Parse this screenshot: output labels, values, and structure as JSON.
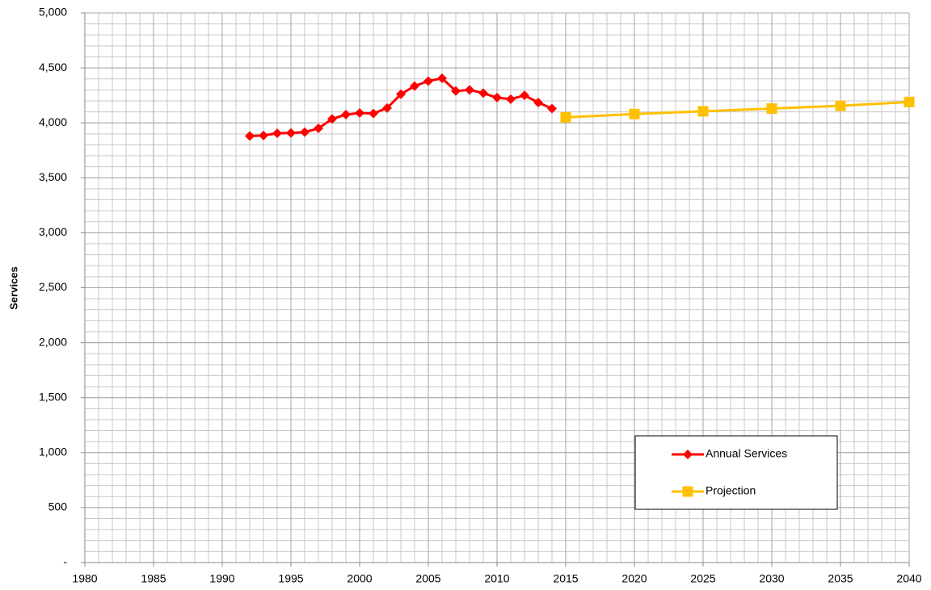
{
  "chart_data": {
    "type": "line",
    "y_label": "Services",
    "xlim": [
      1980,
      2040
    ],
    "xticks": [
      1980,
      1985,
      1990,
      1995,
      2000,
      2005,
      2010,
      2015,
      2020,
      2025,
      2030,
      2035,
      2040
    ],
    "ylim": [
      0,
      5000
    ],
    "yticks": [
      {
        "value": 0,
        "label": "-"
      },
      500,
      {
        "value": 1000,
        "label": "1,000"
      },
      {
        "value": 1500,
        "label": "1,500"
      },
      {
        "value": 2000,
        "label": "2,000"
      },
      {
        "value": 2500,
        "label": "2,500"
      },
      {
        "value": 3000,
        "label": "3,000"
      },
      {
        "value": 3500,
        "label": "3,500"
      },
      {
        "value": 4000,
        "label": "4,000"
      },
      {
        "value": 4500,
        "label": "4,500"
      },
      {
        "value": 5000,
        "label": "5,000"
      }
    ],
    "grid": true,
    "legend": "lower right",
    "series": [
      {
        "name": "Annual Services",
        "color": "#ff0000",
        "marker": "diamond",
        "x": [
          1992,
          1993,
          1994,
          1995,
          1996,
          1997,
          1998,
          1999,
          2000,
          2001,
          2002,
          2003,
          2004,
          2005,
          2006,
          2007,
          2008,
          2009,
          2010,
          2011,
          2012,
          2013,
          2014
        ],
        "values": [
          3880,
          3885,
          3905,
          3908,
          3915,
          3950,
          4035,
          4075,
          4090,
          4085,
          4135,
          4260,
          4335,
          4380,
          4405,
          4290,
          4300,
          4270,
          4230,
          4215,
          4250,
          4185,
          4130
        ]
      },
      {
        "name": "Projection",
        "color": "#ffc000",
        "marker": "square",
        "x": [
          2015,
          2020,
          2025,
          2030,
          2035,
          2040
        ],
        "values": [
          4050,
          4080,
          4105,
          4130,
          4155,
          4190
        ]
      }
    ]
  }
}
